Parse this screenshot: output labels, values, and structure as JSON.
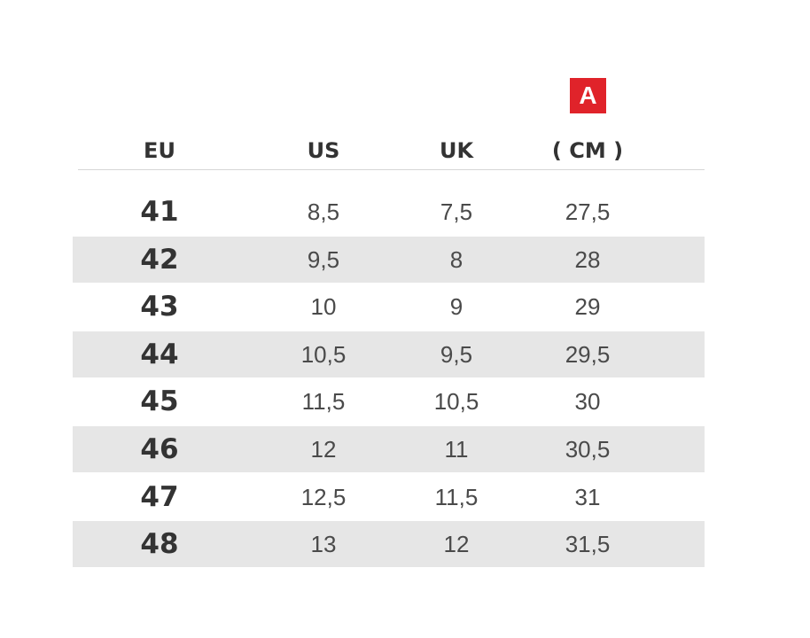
{
  "badge": "A",
  "table": {
    "header": [
      "EU",
      "US",
      "UK",
      "( CM )"
    ],
    "rows": [
      [
        "41",
        "8,5",
        "7,5",
        "27,5"
      ],
      [
        "42",
        "9,5",
        "8",
        "28"
      ],
      [
        "43",
        "10",
        "9",
        "29"
      ],
      [
        "44",
        "10,5",
        "9,5",
        "29,5"
      ],
      [
        "45",
        "11,5",
        "10,5",
        "30"
      ],
      [
        "46",
        "12",
        "11",
        "30,5"
      ],
      [
        "47",
        "12,5",
        "11,5",
        "31"
      ],
      [
        "48",
        "13",
        "12",
        "31,5"
      ]
    ]
  }
}
